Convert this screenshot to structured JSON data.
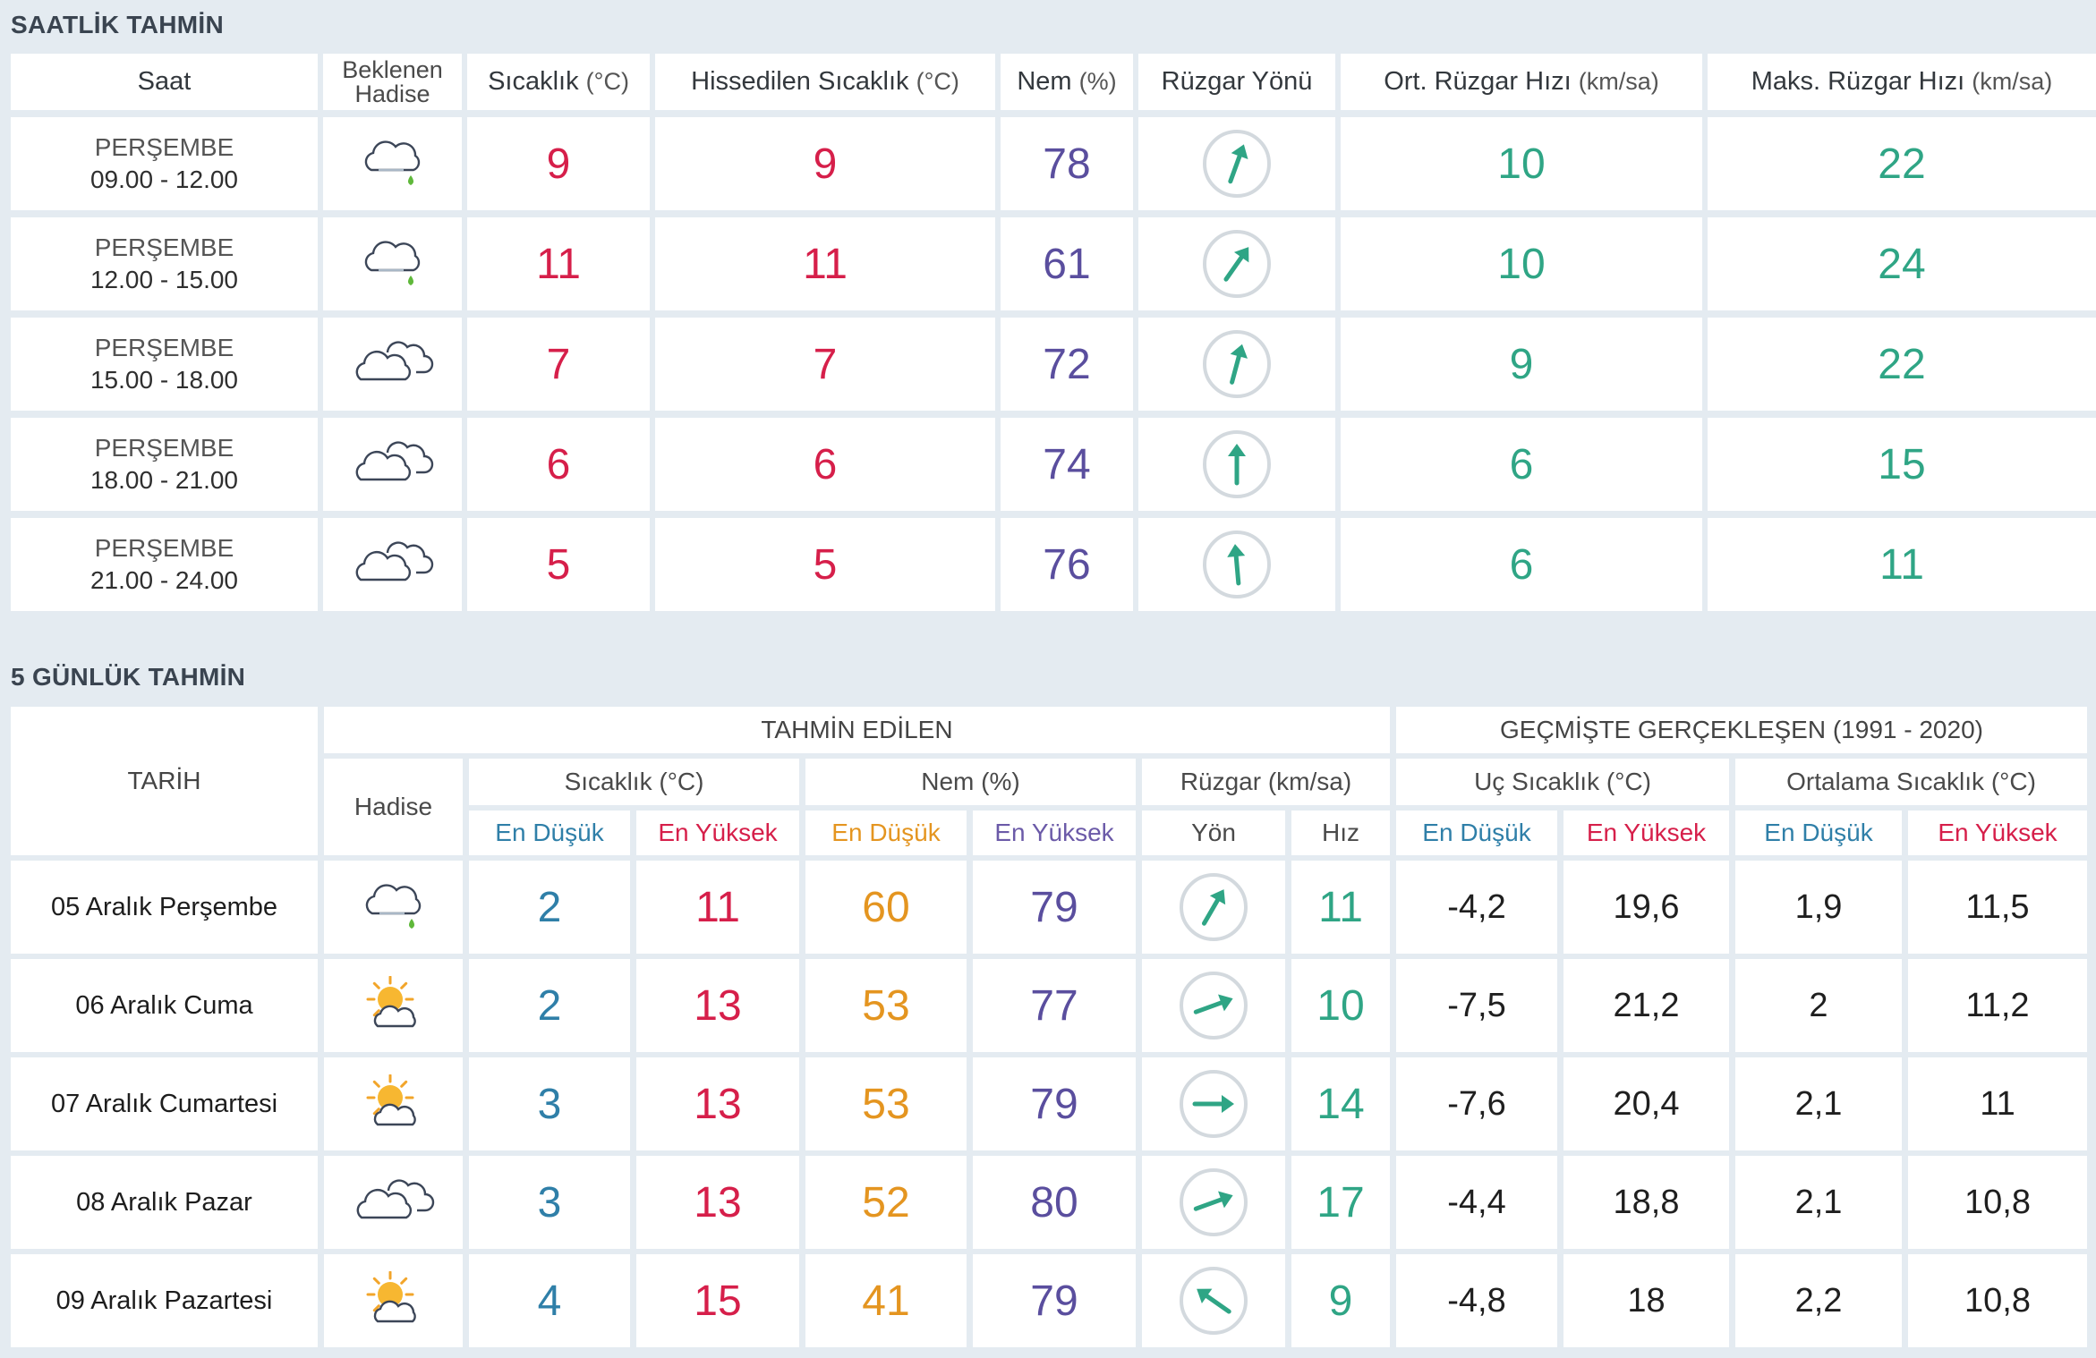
{
  "hourly": {
    "title": "SAATLİK TAHMİN",
    "headers": {
      "saat": "Saat",
      "hadise": [
        "Beklenen",
        "Hadise"
      ],
      "sicaklik": {
        "label": "Sıcaklık",
        "unit": "(°C)"
      },
      "hissedilen": {
        "label": "Hissedilen Sıcaklık",
        "unit": "(°C)"
      },
      "nem": {
        "label": "Nem",
        "unit": "(%)"
      },
      "yon": {
        "label": "Rüzgar Yönü",
        "unit": ""
      },
      "ort": {
        "label": "Ort. Rüzgar Hızı",
        "unit": "(km/sa)"
      },
      "maks": {
        "label": "Maks. Rüzgar Hızı",
        "unit": "(km/sa)"
      }
    },
    "rows": [
      {
        "day": "PERŞEMBE",
        "time": "09.00 - 12.00",
        "icon": "cloud-rain-icon",
        "temp": "9",
        "feels": "9",
        "hum": "78",
        "wind_deg": 200,
        "avg": "10",
        "max": "22"
      },
      {
        "day": "PERŞEMBE",
        "time": "12.00 - 15.00",
        "icon": "cloud-rain-icon",
        "temp": "11",
        "feels": "11",
        "hum": "61",
        "wind_deg": 215,
        "avg": "10",
        "max": "24"
      },
      {
        "day": "PERŞEMBE",
        "time": "15.00 - 18.00",
        "icon": "cloudy-icon",
        "temp": "7",
        "feels": "7",
        "hum": "72",
        "wind_deg": 195,
        "avg": "9",
        "max": "22"
      },
      {
        "day": "PERŞEMBE",
        "time": "18.00 - 21.00",
        "icon": "cloudy-icon",
        "temp": "6",
        "feels": "6",
        "hum": "74",
        "wind_deg": 180,
        "avg": "6",
        "max": "15"
      },
      {
        "day": "PERŞEMBE",
        "time": "21.00 - 24.00",
        "icon": "cloudy-icon",
        "temp": "5",
        "feels": "5",
        "hum": "76",
        "wind_deg": 175,
        "avg": "6",
        "max": "11"
      }
    ]
  },
  "daily": {
    "title": "5 GÜNLÜK TAHMİN",
    "headers": {
      "tarih": "TARİH",
      "tahmin": "TAHMİN EDİLEN",
      "gecmis": "GEÇMİŞTE GERÇEKLEŞEN (1991 - 2020)",
      "hadise": "Hadise",
      "sicaklik": "Sıcaklık (°C)",
      "nem": "Nem (%)",
      "ruzgar": "Rüzgar (km/sa)",
      "uc": "Uç Sıcaklık (°C)",
      "ortalama": "Ortalama Sıcaklık (°C)",
      "en_dusuk": "En Düşük",
      "en_yuksek": "En Yüksek",
      "yon": "Yön",
      "hiz": "Hız"
    },
    "rows": [
      {
        "date": "05 Aralık Perşembe",
        "icon": "cloud-rain-icon",
        "tmin": "2",
        "tmax": "11",
        "hmin": "60",
        "hmax": "79",
        "wind_deg": 210,
        "speed": "11",
        "uc_min": "-4,2",
        "uc_max": "19,6",
        "ort_min": "1,9",
        "ort_max": "11,5"
      },
      {
        "date": "06 Aralık Cuma",
        "icon": "partly-sunny-icon",
        "tmin": "2",
        "tmax": "13",
        "hmin": "53",
        "hmax": "77",
        "wind_deg": 250,
        "speed": "10",
        "uc_min": "-7,5",
        "uc_max": "21,2",
        "ort_min": "2",
        "ort_max": "11,2"
      },
      {
        "date": "07 Aralık Cumartesi",
        "icon": "partly-sunny-icon",
        "tmin": "3",
        "tmax": "13",
        "hmin": "53",
        "hmax": "79",
        "wind_deg": 270,
        "speed": "14",
        "uc_min": "-7,6",
        "uc_max": "20,4",
        "ort_min": "2,1",
        "ort_max": "11"
      },
      {
        "date": "08 Aralık Pazar",
        "icon": "cloudy-icon",
        "tmin": "3",
        "tmax": "13",
        "hmin": "52",
        "hmax": "80",
        "wind_deg": 250,
        "speed": "17",
        "uc_min": "-4,4",
        "uc_max": "18,8",
        "ort_min": "2,1",
        "ort_max": "10,8"
      },
      {
        "date": "09 Aralık Pazartesi",
        "icon": "partly-sunny-icon",
        "tmin": "4",
        "tmax": "15",
        "hmin": "41",
        "hmax": "79",
        "wind_deg": 125,
        "speed": "9",
        "uc_min": "-4,8",
        "uc_max": "18",
        "ort_min": "2,2",
        "ort_max": "10,8"
      }
    ]
  },
  "colors": {
    "temp": "#d61f4a",
    "humidity": "#5a4e9e",
    "wind": "#2fa585",
    "low": "#2f7fa8",
    "orange": "#e49520",
    "background": "#e4ebf1"
  }
}
